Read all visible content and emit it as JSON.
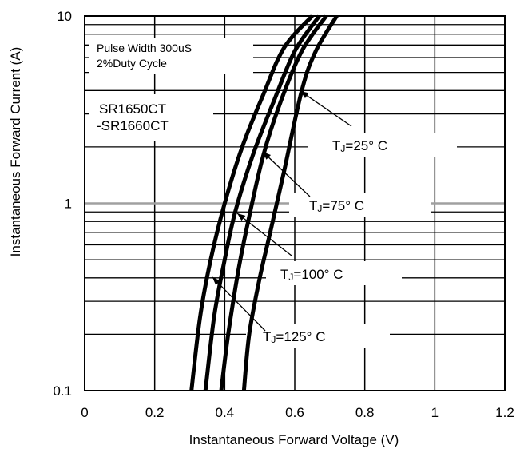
{
  "chart_data": {
    "type": "line",
    "title": "",
    "xlabel": "Instantaneous Forward Voltage (V)",
    "ylabel": "Instantaneous Forward Current (A)",
    "xlim": [
      0,
      1.2
    ],
    "ylim": [
      0.1,
      10
    ],
    "yscale": "log",
    "xticks": [
      "0",
      "0.2",
      "0.4",
      "0.6",
      "0.8",
      "1",
      "1.2"
    ],
    "yticks": [
      "0.1",
      "1",
      "10"
    ],
    "grid": true,
    "annotations": {
      "pulse_line1": "Pulse Width 300uS",
      "pulse_line2": "2%Duty Cycle",
      "part_line1": "SR1650CT",
      "part_line2": "-SR1660CT"
    },
    "series": [
      {
        "name": "TJ=25° C",
        "label_main": "T",
        "label_sub": "J",
        "label_rest": "=25° C",
        "points": [
          [
            0.455,
            0.1
          ],
          [
            0.47,
            0.2
          ],
          [
            0.5,
            0.4
          ],
          [
            0.53,
            0.7
          ],
          [
            0.57,
            1.5
          ],
          [
            0.62,
            4.0
          ],
          [
            0.66,
            6.5
          ],
          [
            0.72,
            10
          ]
        ]
      },
      {
        "name": "TJ=75° C",
        "label_main": "T",
        "label_sub": "J",
        "label_rest": "=75° C",
        "points": [
          [
            0.39,
            0.1
          ],
          [
            0.41,
            0.2
          ],
          [
            0.44,
            0.45
          ],
          [
            0.47,
            0.85
          ],
          [
            0.51,
            1.8
          ],
          [
            0.56,
            3.5
          ],
          [
            0.62,
            6.5
          ],
          [
            0.69,
            10
          ]
        ]
      },
      {
        "name": "TJ=100° C",
        "label_main": "T",
        "label_sub": "J",
        "label_rest": "=100° C",
        "points": [
          [
            0.345,
            0.1
          ],
          [
            0.37,
            0.25
          ],
          [
            0.4,
            0.5
          ],
          [
            0.43,
            0.9
          ],
          [
            0.48,
            1.8
          ],
          [
            0.54,
            3.5
          ],
          [
            0.6,
            6.5
          ],
          [
            0.67,
            10
          ]
        ]
      },
      {
        "name": "TJ=125° C",
        "label_main": "T",
        "label_sub": "J",
        "label_rest": "=125° C",
        "points": [
          [
            0.305,
            0.1
          ],
          [
            0.33,
            0.25
          ],
          [
            0.36,
            0.5
          ],
          [
            0.4,
            1.0
          ],
          [
            0.45,
            2.0
          ],
          [
            0.51,
            3.8
          ],
          [
            0.57,
            6.8
          ],
          [
            0.65,
            10
          ]
        ]
      }
    ],
    "colors": {
      "curve": "#000000",
      "grid": "#000000",
      "highlight_gridline": "#a0a0a0"
    }
  }
}
